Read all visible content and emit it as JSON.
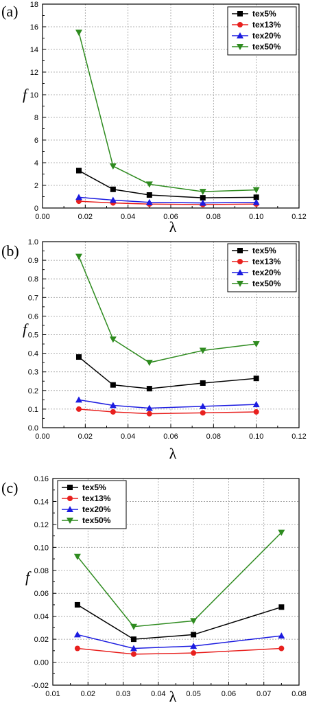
{
  "chart_data": [
    {
      "type": "line",
      "panel_label": "(a)",
      "xlabel": "λ",
      "ylabel": "f",
      "xlim": [
        0.0,
        0.12
      ],
      "ylim": [
        0,
        18
      ],
      "xticks": [
        0.0,
        0.02,
        0.04,
        0.06,
        0.08,
        0.1,
        0.12
      ],
      "xtick_labels": [
        "0.00",
        "0.02",
        "0.04",
        "0.06",
        "0.08",
        "0.10",
        "0.12"
      ],
      "yticks": [
        0,
        2,
        4,
        6,
        8,
        10,
        12,
        14,
        16,
        18
      ],
      "ytick_labels": [
        "0",
        "2",
        "4",
        "6",
        "8",
        "10",
        "12",
        "14",
        "16",
        "18"
      ],
      "grid": true,
      "legend_position": "top-right",
      "x": [
        0.017,
        0.033,
        0.05,
        0.075,
        0.1
      ],
      "series": [
        {
          "name": "tex5%",
          "color": "#000000",
          "marker": "square",
          "values": [
            3.3,
            1.65,
            1.15,
            0.9,
            0.95
          ]
        },
        {
          "name": "tex13%",
          "color": "#e8201e",
          "marker": "circle",
          "values": [
            0.6,
            0.45,
            0.35,
            0.3,
            0.35
          ]
        },
        {
          "name": "tex20%",
          "color": "#1c1ce0",
          "marker": "triangle-up",
          "values": [
            0.95,
            0.7,
            0.5,
            0.45,
            0.5
          ]
        },
        {
          "name": "tex50%",
          "color": "#2e8b1f",
          "marker": "triangle-down",
          "values": [
            15.5,
            3.7,
            2.1,
            1.45,
            1.6
          ]
        }
      ]
    },
    {
      "type": "line",
      "panel_label": "(b)",
      "xlabel": "λ",
      "ylabel": "f",
      "xlim": [
        0.0,
        0.12
      ],
      "ylim": [
        0.0,
        1.0
      ],
      "xticks": [
        0.0,
        0.02,
        0.04,
        0.06,
        0.08,
        0.1,
        0.12
      ],
      "xtick_labels": [
        "0.00",
        "0.02",
        "0.04",
        "0.06",
        "0.08",
        "0.10",
        "0.12"
      ],
      "yticks": [
        0.0,
        0.1,
        0.2,
        0.3,
        0.4,
        0.5,
        0.6,
        0.7,
        0.8,
        0.9,
        1.0
      ],
      "ytick_labels": [
        "0.0",
        "0.1",
        "0.2",
        "0.3",
        "0.4",
        "0.5",
        "0.6",
        "0.7",
        "0.8",
        "0.9",
        "1.0"
      ],
      "grid": true,
      "legend_position": "top-right",
      "x": [
        0.017,
        0.033,
        0.05,
        0.075,
        0.1
      ],
      "series": [
        {
          "name": "tex5%",
          "color": "#000000",
          "marker": "square",
          "values": [
            0.38,
            0.23,
            0.21,
            0.24,
            0.265
          ]
        },
        {
          "name": "tex13%",
          "color": "#e8201e",
          "marker": "circle",
          "values": [
            0.1,
            0.085,
            0.075,
            0.08,
            0.085
          ]
        },
        {
          "name": "tex20%",
          "color": "#1c1ce0",
          "marker": "triangle-up",
          "values": [
            0.15,
            0.12,
            0.105,
            0.115,
            0.125
          ]
        },
        {
          "name": "tex50%",
          "color": "#2e8b1f",
          "marker": "triangle-down",
          "values": [
            0.92,
            0.475,
            0.35,
            0.415,
            0.45
          ]
        }
      ]
    },
    {
      "type": "line",
      "panel_label": "(c)",
      "xlabel": "λ",
      "ylabel": "f",
      "xlim": [
        0.01,
        0.08
      ],
      "ylim": [
        -0.02,
        0.16
      ],
      "xticks": [
        0.01,
        0.02,
        0.03,
        0.04,
        0.05,
        0.06,
        0.07,
        0.08
      ],
      "xtick_labels": [
        "0.01",
        "0.02",
        "0.03",
        "0.04",
        "0.05",
        "0.06",
        "0.07",
        "0.08"
      ],
      "yticks": [
        -0.02,
        0.0,
        0.02,
        0.04,
        0.06,
        0.08,
        0.1,
        0.12,
        0.14,
        0.16
      ],
      "ytick_labels": [
        "-0.02",
        "0.00",
        "0.02",
        "0.04",
        "0.06",
        "0.08",
        "0.10",
        "0.12",
        "0.14",
        "0.16"
      ],
      "grid": true,
      "legend_position": "top-left",
      "x": [
        0.017,
        0.033,
        0.05,
        0.075
      ],
      "series": [
        {
          "name": "tex5%",
          "color": "#000000",
          "marker": "square",
          "values": [
            0.05,
            0.02,
            0.024,
            0.048
          ]
        },
        {
          "name": "tex13%",
          "color": "#e8201e",
          "marker": "circle",
          "values": [
            0.012,
            0.007,
            0.008,
            0.012
          ]
        },
        {
          "name": "tex20%",
          "color": "#1c1ce0",
          "marker": "triangle-up",
          "values": [
            0.024,
            0.012,
            0.014,
            0.023
          ]
        },
        {
          "name": "tex50%",
          "color": "#2e8b1f",
          "marker": "triangle-down",
          "values": [
            0.092,
            0.031,
            0.036,
            0.113
          ]
        }
      ]
    }
  ]
}
